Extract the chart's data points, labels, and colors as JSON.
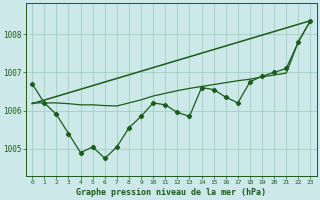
{
  "xlabel": "Graphe pression niveau de la mer (hPa)",
  "background_color": "#cce8e8",
  "grid_color": "#99ccbb",
  "line_color": "#1a5c1a",
  "xlim": [
    -0.5,
    23.5
  ],
  "ylim": [
    1004.3,
    1008.8
  ],
  "yticks": [
    1005,
    1006,
    1007,
    1008
  ],
  "xticks": [
    0,
    1,
    2,
    3,
    4,
    5,
    6,
    7,
    8,
    9,
    10,
    11,
    12,
    13,
    14,
    15,
    16,
    17,
    18,
    19,
    20,
    21,
    22,
    23
  ],
  "series1_x": [
    0,
    1,
    2,
    3,
    4,
    5,
    6,
    7,
    8,
    9,
    10,
    11,
    12,
    13,
    14,
    15,
    16,
    17,
    18,
    19,
    20,
    21,
    22,
    23
  ],
  "series1_y": [
    1006.7,
    1006.2,
    1005.9,
    1005.4,
    1004.9,
    1005.05,
    1004.75,
    1005.05,
    1005.55,
    1005.85,
    1006.2,
    1006.15,
    1005.95,
    1005.85,
    1006.6,
    1006.55,
    1006.35,
    1006.2,
    1006.75,
    1006.9,
    1007.0,
    1007.1,
    1007.8,
    1008.35
  ],
  "series2_x": [
    0,
    1,
    2,
    3,
    4,
    5,
    6,
    7,
    8,
    9,
    10,
    11,
    12,
    13,
    14,
    15,
    16,
    17,
    18,
    19,
    20,
    21,
    22,
    23
  ],
  "series2_y": [
    1006.2,
    1006.2,
    1006.2,
    1006.18,
    1006.15,
    1006.15,
    1006.13,
    1006.12,
    1006.2,
    1006.28,
    1006.38,
    1006.45,
    1006.52,
    1006.58,
    1006.63,
    1006.68,
    1006.73,
    1006.78,
    1006.82,
    1006.88,
    1006.93,
    1006.98,
    1007.8,
    1008.35
  ],
  "series3_x": [
    0,
    23
  ],
  "series3_y": [
    1006.18,
    1008.35
  ]
}
